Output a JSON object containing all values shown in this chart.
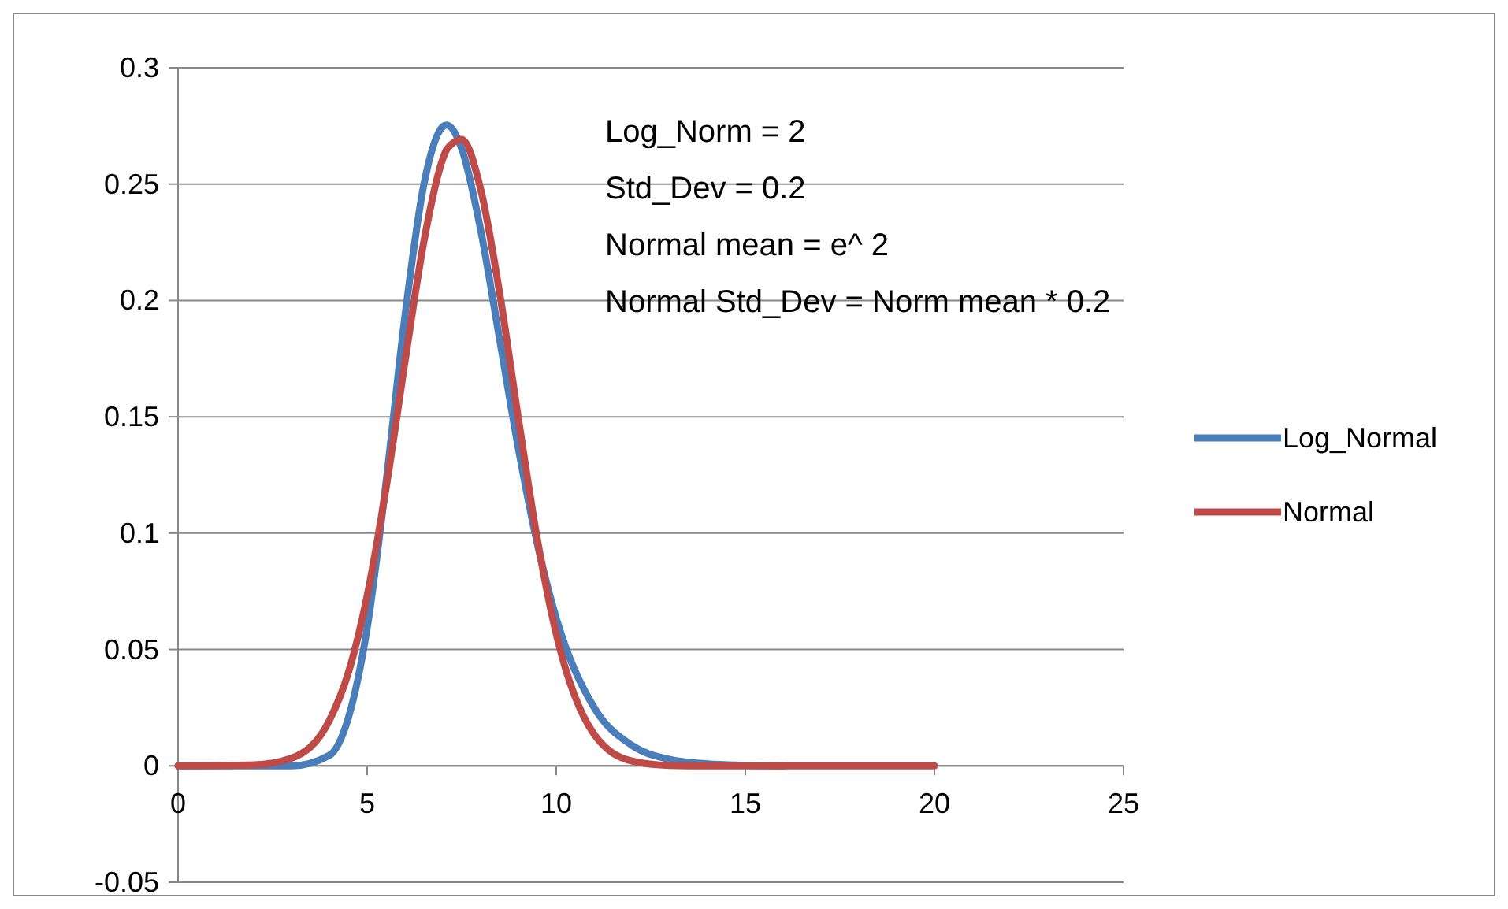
{
  "chart_data": {
    "type": "line",
    "x": [
      0,
      2,
      3,
      4,
      4.5,
      5,
      5.5,
      6,
      6.5,
      7,
      7.1,
      7.5,
      8,
      8.5,
      9,
      9.5,
      10,
      11,
      12,
      13,
      14,
      15,
      16,
      18,
      20
    ],
    "series": [
      {
        "name": "Log_Normal",
        "color": "#4a7ebb",
        "values": [
          0,
          0,
          0,
          0.0045,
          0.0205,
          0.0592,
          0.1219,
          0.1933,
          0.2499,
          0.2747,
          0.2754,
          0.2652,
          0.2304,
          0.1836,
          0.1363,
          0.0954,
          0.0635,
          0.0251,
          0.0088,
          0.0028,
          0.0009,
          0.0003,
          0,
          null,
          null
        ]
      },
      {
        "name": "Normal",
        "color": "#be4b48",
        "values": [
          0,
          0.0004,
          0.0033,
          0.0195,
          0.0399,
          0.0731,
          0.1193,
          0.1736,
          0.2253,
          0.2608,
          0.2648,
          0.2692,
          0.2479,
          0.2035,
          0.1491,
          0.0973,
          0.0567,
          0.0136,
          0.0021,
          0.0002,
          0,
          0,
          0,
          0,
          0
        ]
      }
    ],
    "xlim": [
      0,
      25
    ],
    "xticks": [
      0,
      5,
      10,
      15,
      20,
      25
    ],
    "ylim": [
      -0.05,
      0.3
    ],
    "yticks": [
      -0.05,
      0,
      0.05,
      0.1,
      0.15,
      0.2,
      0.25,
      0.3
    ],
    "grid": "y",
    "legend": "right",
    "line_style": "solid",
    "annotations": [
      "Log_Norm = 2",
      "Std_Dev = 0.2",
      "Normal mean = e^ 2",
      "Normal Std_Dev = Norm mean * 0.2"
    ]
  }
}
